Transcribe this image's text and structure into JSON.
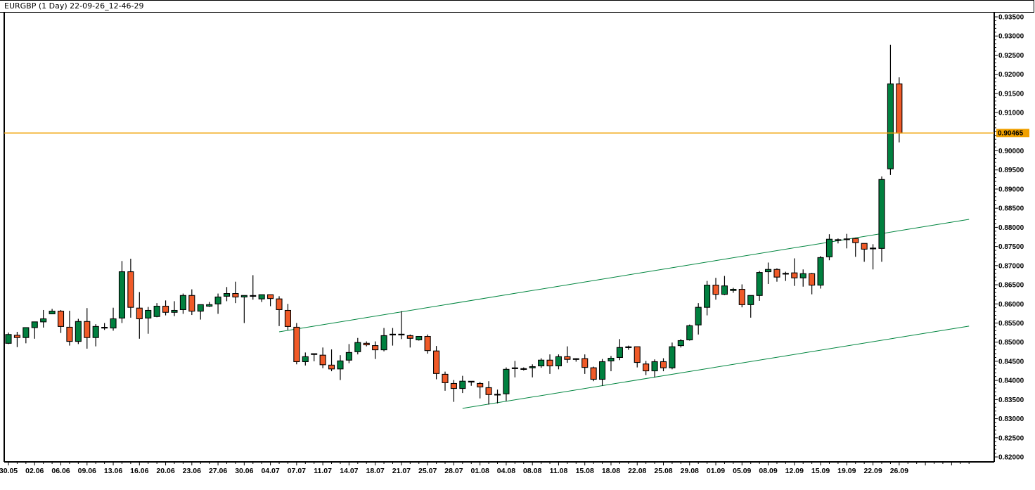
{
  "header": {
    "title": "EURGBP (1 Day) 22-09-26_12-46-29"
  },
  "chart_data": {
    "type": "candlestick",
    "symbol": "EURGBP",
    "timeframe": "1 Day",
    "ylim": [
      0.82,
      0.935
    ],
    "y_ticks": [
      "0.93500",
      "0.93000",
      "0.92500",
      "0.92000",
      "0.91500",
      "0.91000",
      "0.90500",
      "0.90000",
      "0.89500",
      "0.89000",
      "0.88500",
      "0.88000",
      "0.87500",
      "0.87000",
      "0.86500",
      "0.86000",
      "0.85500",
      "0.85000",
      "0.84500",
      "0.84000",
      "0.83500",
      "0.83000",
      "0.82500",
      "0.82000"
    ],
    "x_ticks": [
      "30.05",
      "02.06",
      "06.06",
      "09.06",
      "13.06",
      "16.06",
      "20.06",
      "23.06",
      "27.06",
      "30.06",
      "04.07",
      "07.07",
      "11.07",
      "14.07",
      "18.07",
      "21.07",
      "25.07",
      "28.07",
      "01.08",
      "04.08",
      "08.08",
      "11.08",
      "15.08",
      "18.08",
      "22.08",
      "25.08",
      "29.08",
      "01.09",
      "05.09",
      "08.09",
      "12.09",
      "15.09",
      "19.09",
      "22.09",
      "26.09"
    ],
    "current_price": {
      "value": 0.90465,
      "label": "0.90465",
      "color": "#f0a000"
    },
    "colors": {
      "up": "#00803f",
      "down": "#f05a28",
      "doji": "#000000",
      "trendline": "#00853f"
    },
    "trendlines": [
      {
        "start": {
          "date": "05.07",
          "price": 0.8527
        },
        "end": {
          "date": "05.10",
          "price": 0.8821
        }
      },
      {
        "start": {
          "date": "29.07",
          "price": 0.8327
        },
        "end": {
          "date": "05.10",
          "price": 0.8542
        }
      }
    ],
    "columns": [
      "date",
      "open",
      "high",
      "low",
      "close"
    ],
    "candles": [
      [
        "30.05",
        0.8497,
        0.8525,
        0.8495,
        0.852
      ],
      [
        "31.05",
        0.8518,
        0.8527,
        0.8487,
        0.8512
      ],
      [
        "01.06",
        0.8512,
        0.8538,
        0.8497,
        0.8538
      ],
      [
        "02.06",
        0.8538,
        0.8553,
        0.8509,
        0.8553
      ],
      [
        "03.06",
        0.8553,
        0.8584,
        0.8538,
        0.8561
      ],
      [
        "05.06",
        0.8574,
        0.8587,
        0.8573,
        0.8581
      ],
      [
        "06.06",
        0.8581,
        0.8584,
        0.8524,
        0.8541
      ],
      [
        "07.06",
        0.8539,
        0.8582,
        0.8491,
        0.8502
      ],
      [
        "08.06",
        0.8502,
        0.8561,
        0.8495,
        0.8554
      ],
      [
        "09.06",
        0.8554,
        0.8589,
        0.8483,
        0.8512
      ],
      [
        "10.06",
        0.8512,
        0.8547,
        0.8489,
        0.8541
      ],
      [
        "12.06",
        0.8537,
        0.855,
        0.8532,
        0.8538
      ],
      [
        "13.06",
        0.8537,
        0.859,
        0.853,
        0.8561
      ],
      [
        "14.06",
        0.8563,
        0.8712,
        0.855,
        0.8684
      ],
      [
        "15.06",
        0.8684,
        0.8718,
        0.8564,
        0.8591
      ],
      [
        "16.06",
        0.8589,
        0.8631,
        0.8509,
        0.8561
      ],
      [
        "17.06",
        0.8563,
        0.8592,
        0.8522,
        0.8583
      ],
      [
        "19.06",
        0.8567,
        0.8602,
        0.8565,
        0.8594
      ],
      [
        "20.06",
        0.8594,
        0.8609,
        0.857,
        0.8578
      ],
      [
        "21.06",
        0.8578,
        0.8607,
        0.8568,
        0.8583
      ],
      [
        "22.06",
        0.8585,
        0.8627,
        0.8574,
        0.8622
      ],
      [
        "23.06",
        0.8622,
        0.8638,
        0.8571,
        0.8581
      ],
      [
        "24.06",
        0.8581,
        0.8598,
        0.8559,
        0.8598
      ],
      [
        "26.06",
        0.8594,
        0.8605,
        0.8592,
        0.8598
      ],
      [
        "27.06",
        0.86,
        0.8627,
        0.8574,
        0.8618
      ],
      [
        "28.06",
        0.862,
        0.8644,
        0.8607,
        0.8627
      ],
      [
        "29.06",
        0.8627,
        0.8658,
        0.8602,
        0.8618
      ],
      [
        "30.06",
        0.8618,
        0.8622,
        0.855,
        0.8622
      ],
      [
        "01.07",
        0.8621,
        0.8675,
        0.8611,
        0.8621
      ],
      [
        "03.07",
        0.8613,
        0.8624,
        0.8605,
        0.8624
      ],
      [
        "04.07",
        0.8624,
        0.8624,
        0.8594,
        0.8614
      ],
      [
        "05.07",
        0.8613,
        0.862,
        0.8542,
        0.8585
      ],
      [
        "06.07",
        0.8583,
        0.86,
        0.8532,
        0.8541
      ],
      [
        "07.07",
        0.8539,
        0.855,
        0.8442,
        0.8449
      ],
      [
        "08.07",
        0.8449,
        0.8473,
        0.8439,
        0.8462
      ],
      [
        "10.07",
        0.8469,
        0.8469,
        0.845,
        0.8469
      ],
      [
        "11.07",
        0.8466,
        0.8486,
        0.8432,
        0.8441
      ],
      [
        "12.07",
        0.844,
        0.8481,
        0.8424,
        0.843
      ],
      [
        "13.07",
        0.843,
        0.8466,
        0.8401,
        0.8451
      ],
      [
        "14.07",
        0.8453,
        0.8495,
        0.8445,
        0.8473
      ],
      [
        "15.07",
        0.8475,
        0.8511,
        0.8468,
        0.8499
      ],
      [
        "17.07",
        0.8497,
        0.8502,
        0.8489,
        0.8493
      ],
      [
        "18.07",
        0.8491,
        0.8502,
        0.8456,
        0.848
      ],
      [
        "19.07",
        0.848,
        0.8537,
        0.8476,
        0.8517
      ],
      [
        "20.07",
        0.852,
        0.8537,
        0.8491,
        0.852
      ],
      [
        "21.07",
        0.852,
        0.8581,
        0.8508,
        0.852
      ],
      [
        "22.07",
        0.8517,
        0.852,
        0.8486,
        0.851
      ],
      [
        "24.07",
        0.8506,
        0.8515,
        0.8504,
        0.8515
      ],
      [
        "25.07",
        0.8515,
        0.852,
        0.847,
        0.8478
      ],
      [
        "26.07",
        0.8477,
        0.849,
        0.8403,
        0.8418
      ],
      [
        "27.07",
        0.8416,
        0.8423,
        0.8373,
        0.8394
      ],
      [
        "28.07",
        0.8392,
        0.8401,
        0.8344,
        0.8379
      ],
      [
        "29.07",
        0.8379,
        0.8412,
        0.8367,
        0.8398
      ],
      [
        "31.07",
        0.8395,
        0.8397,
        0.8386,
        0.8397
      ],
      [
        "01.08",
        0.8392,
        0.8396,
        0.8353,
        0.8383
      ],
      [
        "02.08",
        0.8381,
        0.8398,
        0.8337,
        0.8363
      ],
      [
        "03.08",
        0.8363,
        0.8376,
        0.834,
        0.8363
      ],
      [
        "04.08",
        0.8365,
        0.8434,
        0.8346,
        0.8429
      ],
      [
        "05.08",
        0.8432,
        0.8451,
        0.8408,
        0.8432
      ],
      [
        "07.08",
        0.843,
        0.8434,
        0.8426,
        0.843
      ],
      [
        "08.08",
        0.8433,
        0.8442,
        0.8408,
        0.8436
      ],
      [
        "09.08",
        0.8438,
        0.8458,
        0.8433,
        0.8453
      ],
      [
        "10.08",
        0.8453,
        0.8468,
        0.8417,
        0.8438
      ],
      [
        "11.08",
        0.8438,
        0.8468,
        0.8429,
        0.8462
      ],
      [
        "12.08",
        0.8462,
        0.8489,
        0.8446,
        0.8455
      ],
      [
        "14.08",
        0.8456,
        0.8458,
        0.8449,
        0.8455
      ],
      [
        "15.08",
        0.8457,
        0.8468,
        0.8417,
        0.8434
      ],
      [
        "16.08",
        0.8433,
        0.8436,
        0.8398,
        0.8403
      ],
      [
        "17.08",
        0.8403,
        0.8456,
        0.8386,
        0.8449
      ],
      [
        "18.08",
        0.8451,
        0.8464,
        0.8424,
        0.8458
      ],
      [
        "19.08",
        0.846,
        0.8508,
        0.8453,
        0.8486
      ],
      [
        "21.08",
        0.8487,
        0.8491,
        0.848,
        0.8487
      ],
      [
        "22.08",
        0.8488,
        0.8488,
        0.8434,
        0.8447
      ],
      [
        "23.08",
        0.8443,
        0.8451,
        0.8414,
        0.8425
      ],
      [
        "24.08",
        0.8425,
        0.8455,
        0.8408,
        0.8449
      ],
      [
        "25.08",
        0.8449,
        0.8458,
        0.8424,
        0.8433
      ],
      [
        "26.08",
        0.8433,
        0.8499,
        0.8429,
        0.8488
      ],
      [
        "28.08",
        0.8491,
        0.8508,
        0.8486,
        0.8504
      ],
      [
        "29.08",
        0.8506,
        0.8546,
        0.8504,
        0.8543
      ],
      [
        "30.08",
        0.8545,
        0.8602,
        0.852,
        0.8591
      ],
      [
        "31.08",
        0.8591,
        0.866,
        0.857,
        0.8649
      ],
      [
        "01.09",
        0.8649,
        0.8668,
        0.8611,
        0.8625
      ],
      [
        "02.09",
        0.8625,
        0.8673,
        0.8623,
        0.8647
      ],
      [
        "04.09",
        0.8635,
        0.8642,
        0.8629,
        0.8638
      ],
      [
        "05.09",
        0.8638,
        0.8651,
        0.8591,
        0.8598
      ],
      [
        "06.09",
        0.8598,
        0.8622,
        0.8564,
        0.8622
      ],
      [
        "07.09",
        0.8622,
        0.8686,
        0.8608,
        0.8682
      ],
      [
        "08.09",
        0.8684,
        0.8708,
        0.8652,
        0.869
      ],
      [
        "09.09",
        0.869,
        0.8693,
        0.8658,
        0.867
      ],
      [
        "11.09",
        0.8679,
        0.8684,
        0.866,
        0.8679
      ],
      [
        "12.09",
        0.8681,
        0.8719,
        0.8647,
        0.8668
      ],
      [
        "13.09",
        0.8668,
        0.869,
        0.8645,
        0.8679
      ],
      [
        "14.09",
        0.8679,
        0.8681,
        0.8625,
        0.8649
      ],
      [
        "15.09",
        0.8649,
        0.8725,
        0.864,
        0.8721
      ],
      [
        "16.09",
        0.8723,
        0.8782,
        0.8714,
        0.8769
      ],
      [
        "18.09",
        0.8767,
        0.8771,
        0.8758,
        0.8767
      ],
      [
        "19.09",
        0.8769,
        0.8783,
        0.8745,
        0.8769
      ],
      [
        "20.09",
        0.8771,
        0.8773,
        0.8723,
        0.876
      ],
      [
        "21.09",
        0.8758,
        0.8758,
        0.871,
        0.8743
      ],
      [
        "22.09",
        0.8745,
        0.8756,
        0.869,
        0.8745
      ],
      [
        "23.09",
        0.8745,
        0.8933,
        0.871,
        0.8925
      ],
      [
        "25.09",
        0.8953,
        0.9277,
        0.8937,
        0.9175
      ],
      [
        "26.09",
        0.9175,
        0.9192,
        0.9022,
        0.90465
      ]
    ]
  }
}
